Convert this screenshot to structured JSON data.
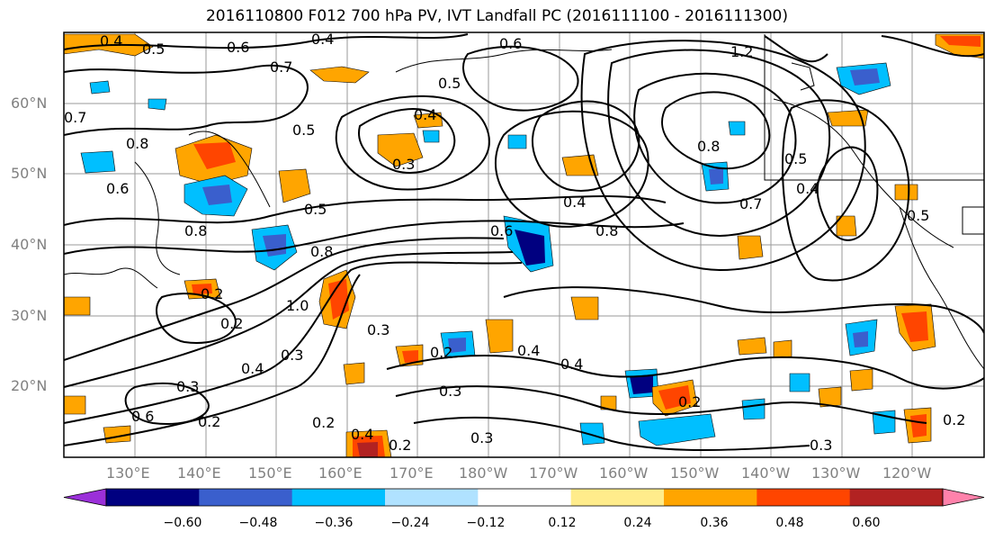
{
  "title": "2016110800 F012 700 hPa PV, IVT Landfall PC (2016111100 - 2016111300)",
  "lat_labels": [
    "60°N",
    "50°N",
    "40°N",
    "30°N",
    "20°N"
  ],
  "lon_labels": [
    "130°E",
    "140°E",
    "150°E",
    "160°E",
    "170°E",
    "180°W",
    "170°W",
    "160°W",
    "150°W",
    "140°W",
    "130°W",
    "120°W"
  ],
  "colorbar": {
    "colors": [
      "#9b30d9",
      "#000080",
      "#3a5fcd",
      "#00bfff",
      "#b0e2ff",
      "#ffffff",
      "#ffec8b",
      "#ffa500",
      "#ff4500",
      "#b22222",
      "#ff82ab"
    ],
    "tick_labels": [
      "−0.60",
      "−0.48",
      "−0.36",
      "−0.24",
      "−0.12",
      "0.12",
      "0.24",
      "0.36",
      "0.48",
      "0.60"
    ]
  },
  "contour_labels": [
    "0.4",
    "0.5",
    "0.6",
    "0.4",
    "0.6",
    "1.2",
    "0.7",
    "0.5",
    "0.7",
    "0.8",
    "0.5",
    "0.8",
    "0.4",
    "0.3",
    "0.5",
    "0.6",
    "0.4",
    "0.8",
    "0.8",
    "0.7",
    "0.5",
    "0.4",
    "0.6",
    "0.5",
    "0.8",
    "0.2",
    "1.0",
    "0.3",
    "0.4",
    "0.3",
    "0.2",
    "0.3",
    "0.4",
    "0.4",
    "0.2",
    "0.3",
    "0.2",
    "0.6",
    "0.2",
    "0.2",
    "0.4",
    "0.2",
    "0.3",
    "0.3",
    "0.2"
  ]
}
